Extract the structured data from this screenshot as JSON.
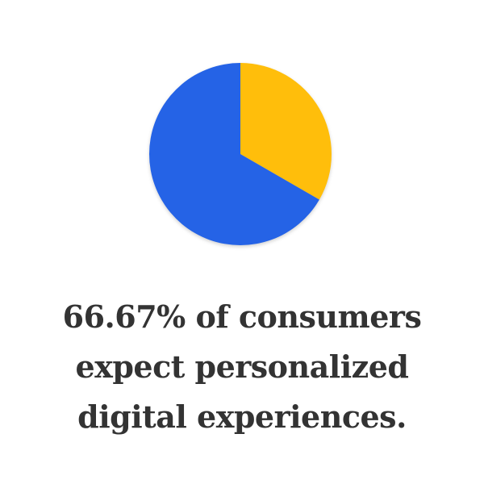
{
  "chart_data": {
    "type": "pie",
    "slices": [
      {
        "value": 33.33,
        "color": "#FFBE0B"
      },
      {
        "value": 66.67,
        "color": "#2563E6"
      }
    ],
    "start_angle_deg": 0,
    "direction": "clockwise"
  },
  "caption": {
    "line1": "66.67% of consumers",
    "line2": "expect personalized",
    "line3": "digital experiences."
  }
}
